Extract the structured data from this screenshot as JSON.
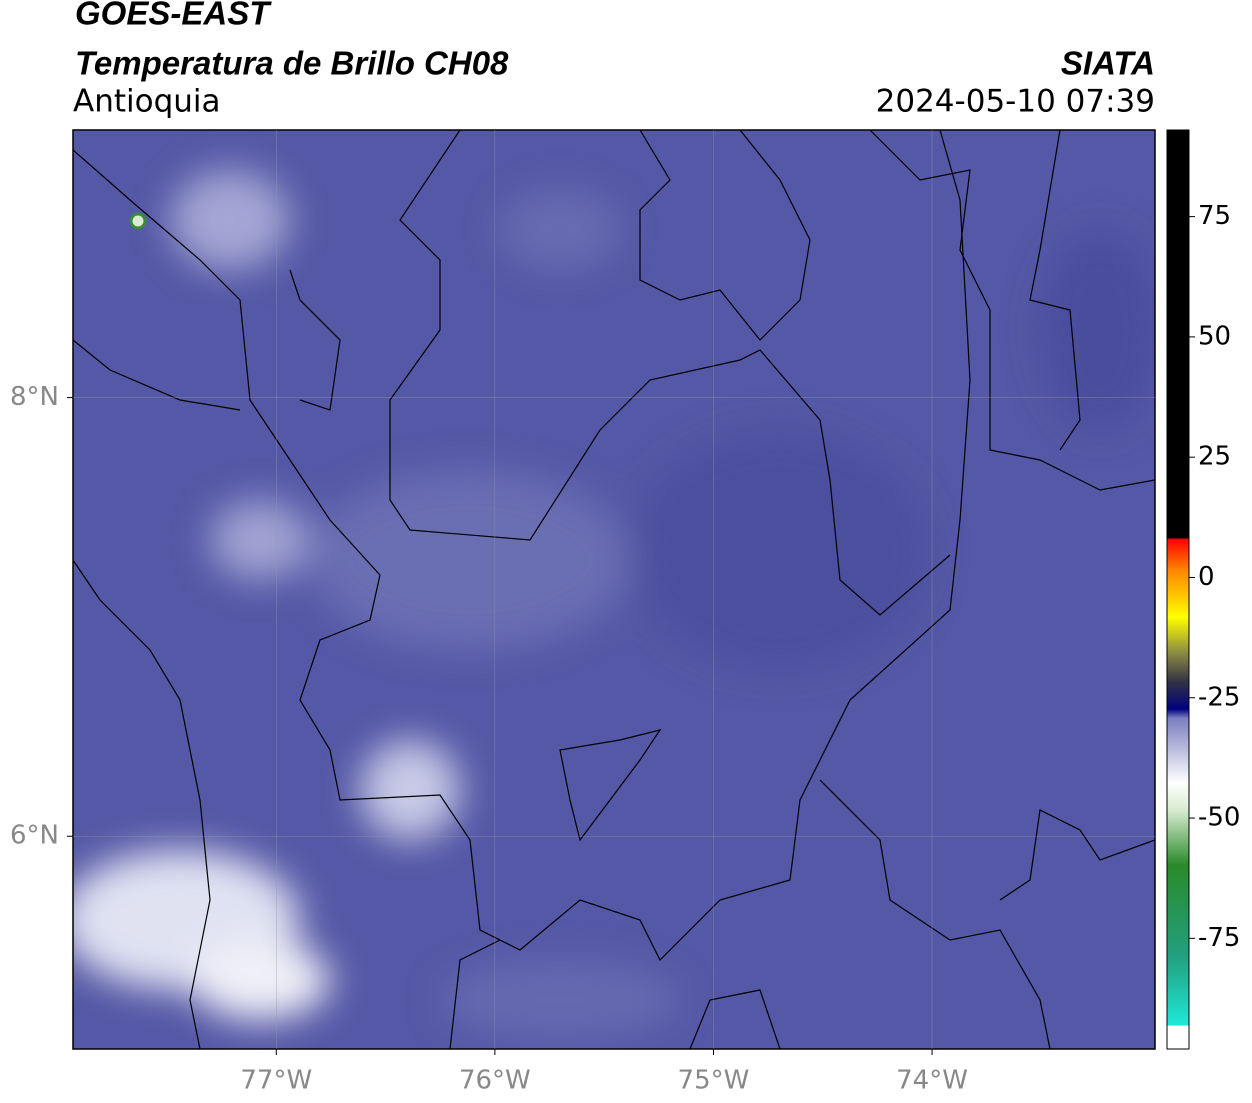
{
  "chart_data": {
    "type": "map",
    "title": "GOES-EAST",
    "subtitle": "Temperatura de Brillo CH08",
    "region": "Antioquia",
    "source": "SIATA",
    "datetime": "2024-05-10 07:39",
    "xlim": [
      -77.93,
      -72.98
    ],
    "ylim": [
      5.03,
      9.22
    ],
    "xticks": [
      {
        "value": -77,
        "label": "77°W"
      },
      {
        "value": -76,
        "label": "76°W"
      },
      {
        "value": -75,
        "label": "75°W"
      },
      {
        "value": -74,
        "label": "74°W"
      }
    ],
    "yticks": [
      {
        "value": 8,
        "label": "8°N"
      },
      {
        "value": 6,
        "label": "6°N"
      }
    ],
    "grid": true,
    "colorbar": {
      "lim": [
        -98,
        93
      ],
      "ticks": [
        75,
        50,
        25,
        0,
        -25,
        -50,
        -75
      ]
    }
  }
}
